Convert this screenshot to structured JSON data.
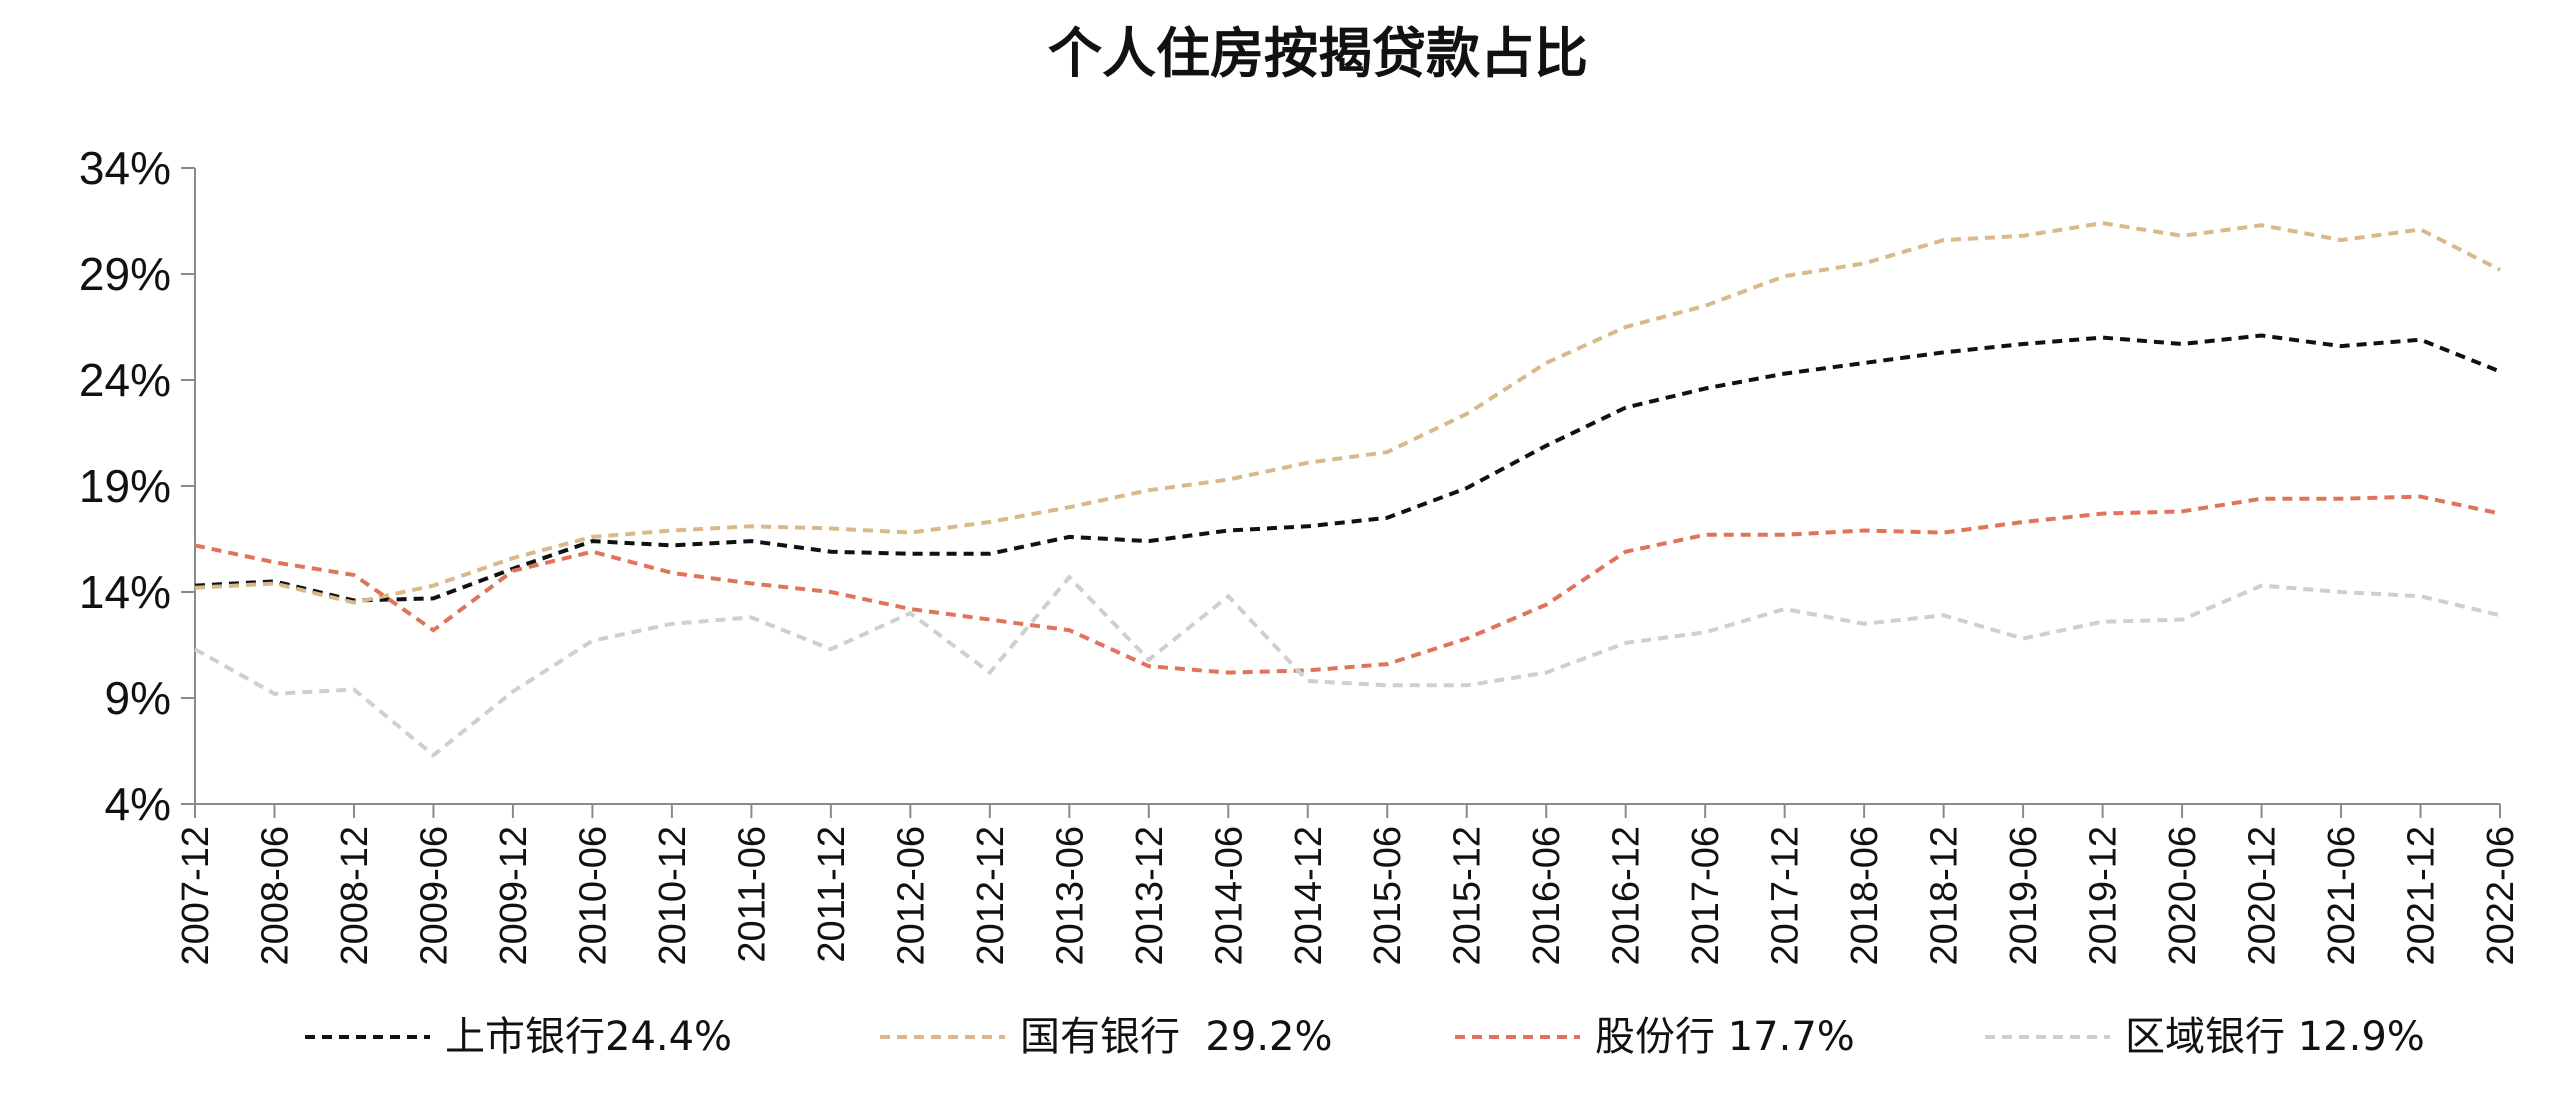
{
  "chart_data": {
    "type": "line",
    "title": "个人住房按揭贷款占比",
    "categories": [
      "2007-12",
      "2008-06",
      "2008-12",
      "2009-06",
      "2009-12",
      "2010-06",
      "2010-12",
      "2011-06",
      "2011-12",
      "2012-06",
      "2012-12",
      "2013-06",
      "2013-12",
      "2014-06",
      "2014-12",
      "2015-06",
      "2015-12",
      "2016-06",
      "2016-12",
      "2017-06",
      "2017-12",
      "2018-06",
      "2018-12",
      "2019-06",
      "2019-12",
      "2020-06",
      "2020-12",
      "2021-06",
      "2021-12",
      "2022-06"
    ],
    "y_ticks": [
      "4%",
      "9%",
      "14%",
      "19%",
      "24%",
      "29%",
      "34%"
    ],
    "ylim": [
      4,
      34
    ],
    "grid": false,
    "legend_position": "bottom",
    "series": [
      {
        "name": "上市银行24.4%",
        "color": "#111111",
        "values": [
          14.3,
          14.5,
          13.6,
          13.7,
          15.1,
          16.4,
          16.2,
          16.4,
          15.9,
          15.8,
          15.8,
          16.6,
          16.4,
          16.9,
          17.1,
          17.5,
          18.9,
          20.9,
          22.7,
          23.6,
          24.3,
          24.8,
          25.3,
          25.7,
          26.0,
          25.7,
          26.1,
          25.6,
          25.9,
          24.4
        ]
      },
      {
        "name": "国有银行  29.2%",
        "color": "#D9B98B",
        "values": [
          14.2,
          14.4,
          13.5,
          14.3,
          15.6,
          16.6,
          16.9,
          17.1,
          17.0,
          16.8,
          17.3,
          18.0,
          18.8,
          19.3,
          20.1,
          20.6,
          22.4,
          24.8,
          26.5,
          27.5,
          28.9,
          29.5,
          30.6,
          30.8,
          31.4,
          30.8,
          31.3,
          30.6,
          31.1,
          29.2
        ]
      },
      {
        "name": "股份行 17.7%",
        "color": "#E0745A",
        "values": [
          16.2,
          15.4,
          14.8,
          12.2,
          15.0,
          15.9,
          14.9,
          14.4,
          14.0,
          13.2,
          12.7,
          12.2,
          10.5,
          10.2,
          10.3,
          10.6,
          11.8,
          13.4,
          15.9,
          16.7,
          16.7,
          16.9,
          16.8,
          17.3,
          17.7,
          17.8,
          18.4,
          18.4,
          18.5,
          17.7
        ]
      },
      {
        "name": "区域银行 12.9%",
        "color": "#CFCFCF",
        "values": [
          11.3,
          9.2,
          9.4,
          6.3,
          9.3,
          11.7,
          12.5,
          12.8,
          11.3,
          13.0,
          10.2,
          14.7,
          10.8,
          13.8,
          9.8,
          9.6,
          9.6,
          10.2,
          11.6,
          12.1,
          13.2,
          12.5,
          12.9,
          11.8,
          12.6,
          12.7,
          14.3,
          14.0,
          13.8,
          12.9
        ]
      }
    ]
  }
}
